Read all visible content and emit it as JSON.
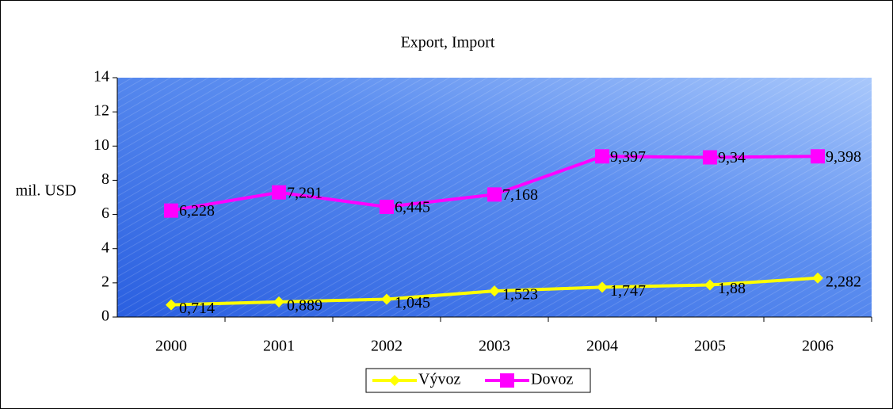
{
  "chart_data": {
    "type": "line",
    "title": "Export, Import",
    "ylabel": "mil. USD",
    "categories": [
      "2000",
      "2001",
      "2002",
      "2003",
      "2004",
      "2005",
      "2006"
    ],
    "series": [
      {
        "name": "Vývoz",
        "color": "#ffff00",
        "marker": "diamond",
        "values": [
          0.714,
          0.889,
          1.045,
          1.523,
          1.747,
          1.88,
          2.282
        ],
        "value_labels": [
          "0,714",
          "0,889",
          "1,045",
          "1,523",
          "1,747",
          "1,88",
          "2,282"
        ]
      },
      {
        "name": "Dovoz",
        "color": "#ff00ff",
        "marker": "square",
        "values": [
          6.228,
          7.291,
          6.445,
          7.168,
          9.397,
          9.34,
          9.398
        ],
        "value_labels": [
          "6,228",
          "7,291",
          "6,445",
          "7,168",
          "9,397",
          "9,34",
          "9,398"
        ]
      }
    ],
    "ylim": [
      0,
      14
    ],
    "yticks": [
      0,
      2,
      4,
      6,
      8,
      10,
      12,
      14
    ],
    "legend": "bottom"
  }
}
